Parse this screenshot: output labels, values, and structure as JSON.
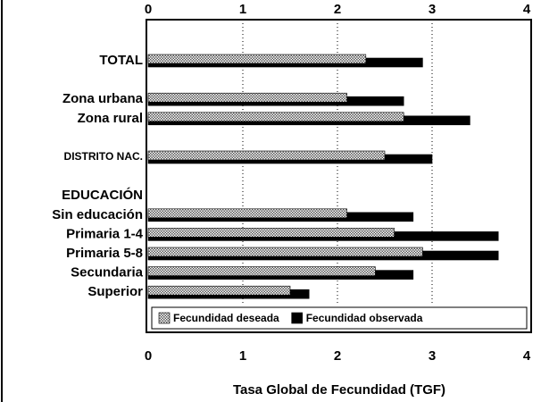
{
  "chart_data": {
    "type": "barh",
    "xlabel": "Tasa Global de Fecundidad (TGF)",
    "categories": [
      "TOTAL",
      null,
      "Zona urbana",
      "Zona rural",
      null,
      "DISTRITO NAC.",
      null,
      "EDUCACIÓN",
      "Sin educación",
      "Primaria 1-4",
      "Primaria 5-8",
      "Secundaria",
      "Superior"
    ],
    "series": [
      {
        "name": "Fecundidad deseada",
        "color": "#aaaaaa",
        "pattern": "hatched",
        "values": [
          2.3,
          null,
          2.1,
          2.7,
          null,
          2.5,
          null,
          null,
          2.1,
          2.6,
          2.9,
          2.4,
          1.5
        ]
      },
      {
        "name": "Fecundidad observada",
        "color": "#000000",
        "values": [
          2.9,
          null,
          2.7,
          3.4,
          null,
          3.0,
          null,
          null,
          2.8,
          3.7,
          3.7,
          2.8,
          1.7
        ]
      }
    ],
    "xlim": [
      0,
      4
    ],
    "xticks": [
      0,
      1,
      2,
      3,
      4
    ],
    "grid": true,
    "legend": "bottom"
  }
}
